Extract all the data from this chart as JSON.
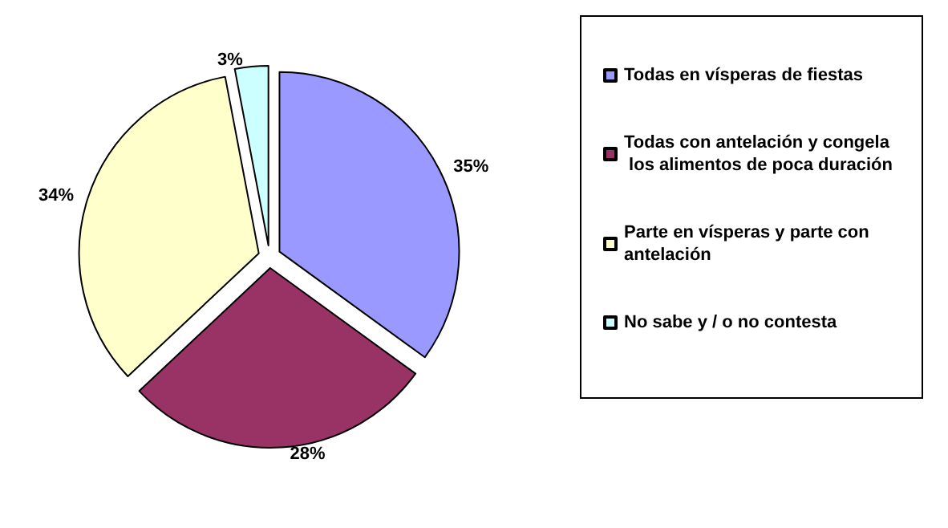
{
  "chart_data": {
    "type": "pie",
    "categories": [
      "Todas en vísperas de fiestas",
      "Todas con antelación y congela los alimentos de poca duración",
      "Parte en vísperas y parte con antelación",
      "No sabe y / o no contesta"
    ],
    "values": [
      35,
      28,
      34,
      3
    ],
    "value_labels": [
      "35%",
      "28%",
      "34%",
      "3%"
    ],
    "colors": [
      "#9999ff",
      "#993366",
      "#ffffcc",
      "#ccffff"
    ],
    "legend": "right"
  }
}
